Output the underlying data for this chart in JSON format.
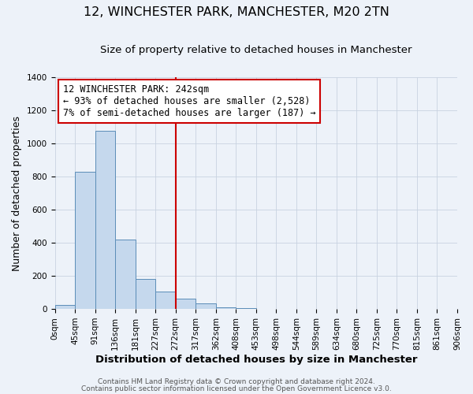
{
  "title": "12, WINCHESTER PARK, MANCHESTER, M20 2TN",
  "subtitle": "Size of property relative to detached houses in Manchester",
  "xlabel": "Distribution of detached houses by size in Manchester",
  "ylabel": "Number of detached properties",
  "bar_values": [
    25,
    830,
    1075,
    420,
    180,
    105,
    60,
    35,
    10,
    5,
    0,
    0,
    0,
    0,
    0,
    0,
    0,
    0,
    0,
    0
  ],
  "bar_labels": [
    "0sqm",
    "45sqm",
    "91sqm",
    "136sqm",
    "181sqm",
    "227sqm",
    "272sqm",
    "317sqm",
    "362sqm",
    "408sqm",
    "453sqm",
    "498sqm",
    "544sqm",
    "589sqm",
    "634sqm",
    "680sqm",
    "725sqm",
    "770sqm",
    "815sqm",
    "861sqm",
    "906sqm"
  ],
  "bar_color": "#c5d8ed",
  "bar_edge_color": "#5b8db8",
  "vline_color": "#cc0000",
  "vline_pos": 6.0,
  "ylim": [
    0,
    1400
  ],
  "yticks": [
    0,
    200,
    400,
    600,
    800,
    1000,
    1200,
    1400
  ],
  "annotation_text_line1": "12 WINCHESTER PARK: 242sqm",
  "annotation_text_line2": "← 93% of detached houses are smaller (2,528)",
  "annotation_text_line3": "7% of semi-detached houses are larger (187) →",
  "footer_line1": "Contains HM Land Registry data © Crown copyright and database right 2024.",
  "footer_line2": "Contains public sector information licensed under the Open Government Licence v3.0.",
  "background_color": "#edf2f9",
  "grid_color": "#c8d2e0",
  "title_fontsize": 11.5,
  "subtitle_fontsize": 9.5,
  "xlabel_fontsize": 9.5,
  "ylabel_fontsize": 9,
  "tick_fontsize": 7.5,
  "annot_fontsize": 8.5,
  "footer_fontsize": 6.5
}
